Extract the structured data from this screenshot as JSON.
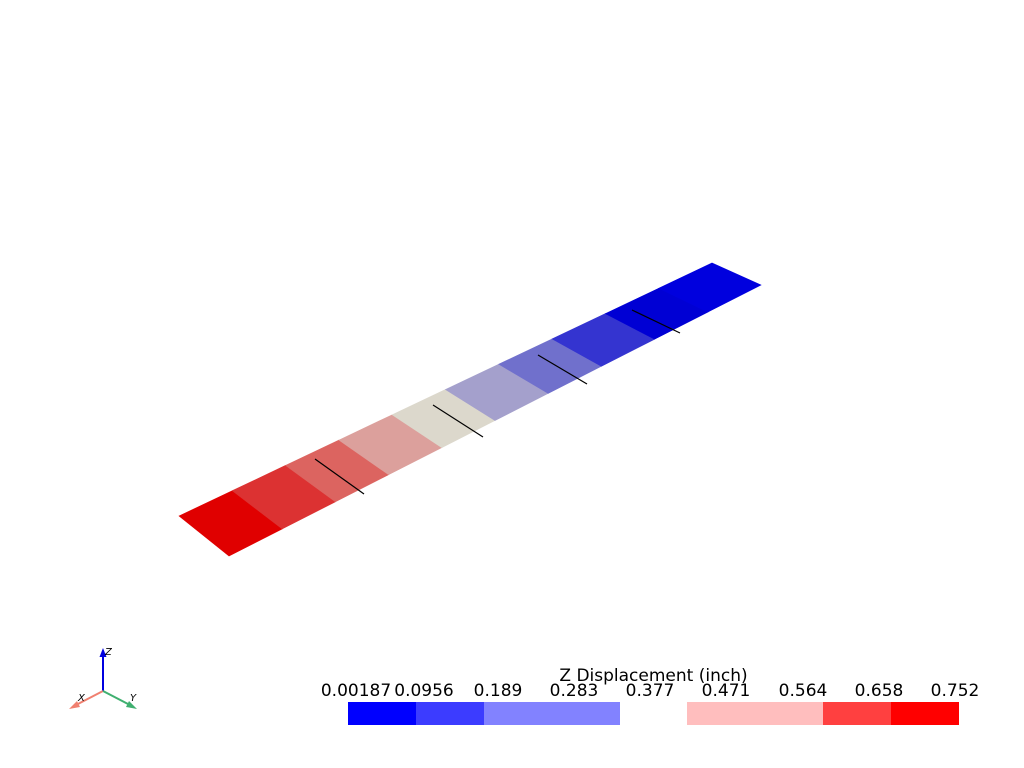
{
  "scalar_bar": {
    "title": "Z Displacement (inch)",
    "ticks": [
      "0.00187",
      "0.0956",
      "0.189",
      "0.283",
      "0.377",
      "0.471",
      "0.564",
      "0.658",
      "0.752"
    ],
    "colors": [
      "#0000ff",
      "#3c3cff",
      "#8282ff",
      "#8282ff",
      "#ffffff",
      "#ffbebe",
      "#ffbebe",
      "#ff4040",
      "#ff0000"
    ]
  },
  "strip": {
    "band_colors": [
      "#e00000",
      "#dc3232",
      "#dc6460",
      "#dca09c",
      "#dcd8cc",
      "#a4a0cc",
      "#7070cc",
      "#3434d0",
      "#0000d4",
      "#0000de"
    ]
  },
  "axes": {
    "x_label": "X",
    "y_label": "Y",
    "z_label": "Z",
    "x_color": "#f08070",
    "y_color": "#40b070",
    "z_color": "#0000e0"
  }
}
